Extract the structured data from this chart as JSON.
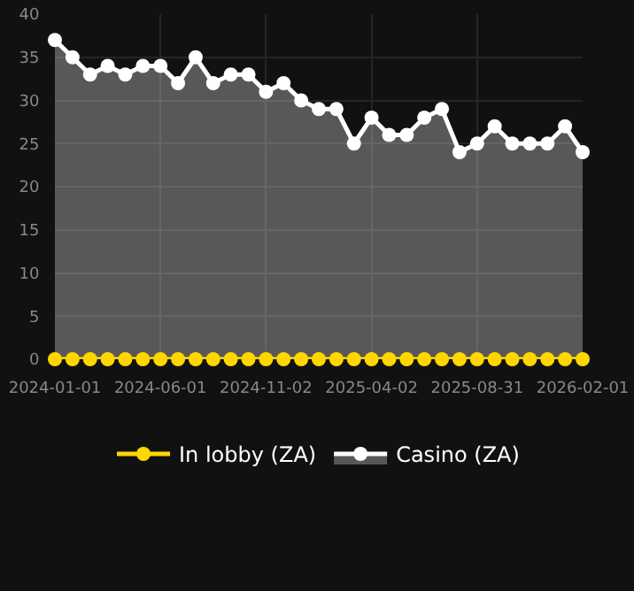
{
  "chart_data": {
    "type": "area",
    "categories": [
      "2024-01-01",
      null,
      null,
      null,
      null,
      null,
      "2024-06-01",
      null,
      null,
      null,
      null,
      null,
      "2024-11-02",
      null,
      null,
      null,
      null,
      null,
      "2025-04-02",
      null,
      null,
      null,
      null,
      null,
      "2025-08-31",
      null,
      null,
      null,
      null,
      null,
      "2026-02-01"
    ],
    "series": [
      {
        "name": "In lobby (ZA)",
        "type": "line",
        "color": "#ffd700",
        "values": [
          0,
          0,
          0,
          0,
          0,
          0,
          0,
          0,
          0,
          0,
          0,
          0,
          0,
          0,
          0,
          0,
          0,
          0,
          0,
          0,
          0,
          0,
          0,
          0,
          0,
          0,
          0,
          0,
          0,
          0,
          0
        ]
      },
      {
        "name": "Casino (ZA)",
        "color": "#ffffff",
        "values": [
          37,
          35,
          33,
          34,
          33,
          34,
          34,
          32,
          35,
          32,
          33,
          33,
          31,
          32,
          30,
          29,
          29,
          25,
          28,
          26,
          26,
          28,
          29,
          24,
          25,
          27,
          25,
          25,
          25,
          27,
          24
        ]
      }
    ],
    "ylim": [
      0,
      40
    ],
    "yticks": [
      0,
      5,
      10,
      15,
      20,
      25,
      30,
      35,
      40
    ],
    "grid": true,
    "legend": "bottom",
    "marker": "circle",
    "line_style": "solid"
  }
}
